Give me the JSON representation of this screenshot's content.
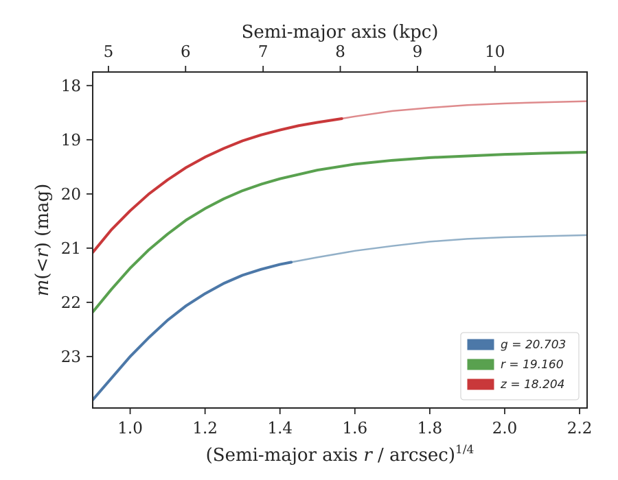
{
  "chart_data": {
    "type": "line",
    "xlabel": "(Semi-major axis r / arcsec)",
    "xlabel_var": "r",
    "xlabel_exp": "1/4",
    "ylabel": "m(<r) (mag)",
    "top_xlabel": "Semi-major axis (kpc)",
    "xlim": [
      0.9,
      2.22
    ],
    "ylim": [
      23.95,
      17.75
    ],
    "y_inverted": true,
    "xticks": [
      1.0,
      1.2,
      1.4,
      1.6,
      1.8,
      2.0,
      2.2
    ],
    "xtick_labels": [
      "1.0",
      "1.2",
      "1.4",
      "1.6",
      "1.8",
      "2.0",
      "2.2"
    ],
    "yticks": [
      18,
      19,
      20,
      21,
      22,
      23
    ],
    "ytick_labels": [
      "18",
      "19",
      "20",
      "21",
      "22",
      "23"
    ],
    "top_ticks_kpc": [
      5,
      6,
      7,
      8,
      9,
      10
    ],
    "top_tick_labels": [
      "5",
      "6",
      "7",
      "8",
      "9",
      "10"
    ],
    "top_ticks_x": [
      0.942,
      1.148,
      1.355,
      1.561,
      1.767,
      1.974
    ],
    "legend_position": "lower-right",
    "grid": false,
    "series": [
      {
        "name": "g = 20.703",
        "color": "#4c78a8",
        "faded_color": "#92b0c8",
        "solid_until_x": 1.43,
        "x": [
          0.9,
          0.95,
          1.0,
          1.05,
          1.1,
          1.15,
          1.2,
          1.25,
          1.3,
          1.35,
          1.4,
          1.43,
          1.5,
          1.6,
          1.7,
          1.8,
          1.9,
          2.0,
          2.1,
          2.22
        ],
        "y": [
          23.8,
          23.4,
          23.0,
          22.65,
          22.33,
          22.06,
          21.84,
          21.65,
          21.5,
          21.39,
          21.3,
          21.26,
          21.17,
          21.05,
          20.96,
          20.88,
          20.83,
          20.8,
          20.78,
          20.76
        ]
      },
      {
        "name": "r = 19.160",
        "color": "#59a14f",
        "faded_color": "#7fb877",
        "solid_until_x": 2.22,
        "x": [
          0.9,
          0.95,
          1.0,
          1.05,
          1.1,
          1.15,
          1.2,
          1.25,
          1.3,
          1.35,
          1.4,
          1.5,
          1.6,
          1.7,
          1.8,
          1.9,
          2.0,
          2.1,
          2.22
        ],
        "y": [
          22.18,
          21.76,
          21.37,
          21.03,
          20.74,
          20.48,
          20.27,
          20.09,
          19.94,
          19.82,
          19.72,
          19.56,
          19.45,
          19.38,
          19.33,
          19.3,
          19.27,
          19.25,
          19.23
        ]
      },
      {
        "name": "z = 18.204",
        "color": "#c9383a",
        "faded_color": "#de8a8c",
        "solid_until_x": 1.565,
        "x": [
          0.9,
          0.95,
          1.0,
          1.05,
          1.1,
          1.15,
          1.2,
          1.25,
          1.3,
          1.35,
          1.4,
          1.45,
          1.5,
          1.565,
          1.6,
          1.7,
          1.8,
          1.9,
          2.0,
          2.1,
          2.22
        ],
        "y": [
          21.08,
          20.66,
          20.31,
          20.0,
          19.74,
          19.51,
          19.32,
          19.16,
          19.02,
          18.91,
          18.82,
          18.74,
          18.68,
          18.61,
          18.57,
          18.47,
          18.41,
          18.36,
          18.33,
          18.31,
          18.29
        ]
      }
    ]
  }
}
